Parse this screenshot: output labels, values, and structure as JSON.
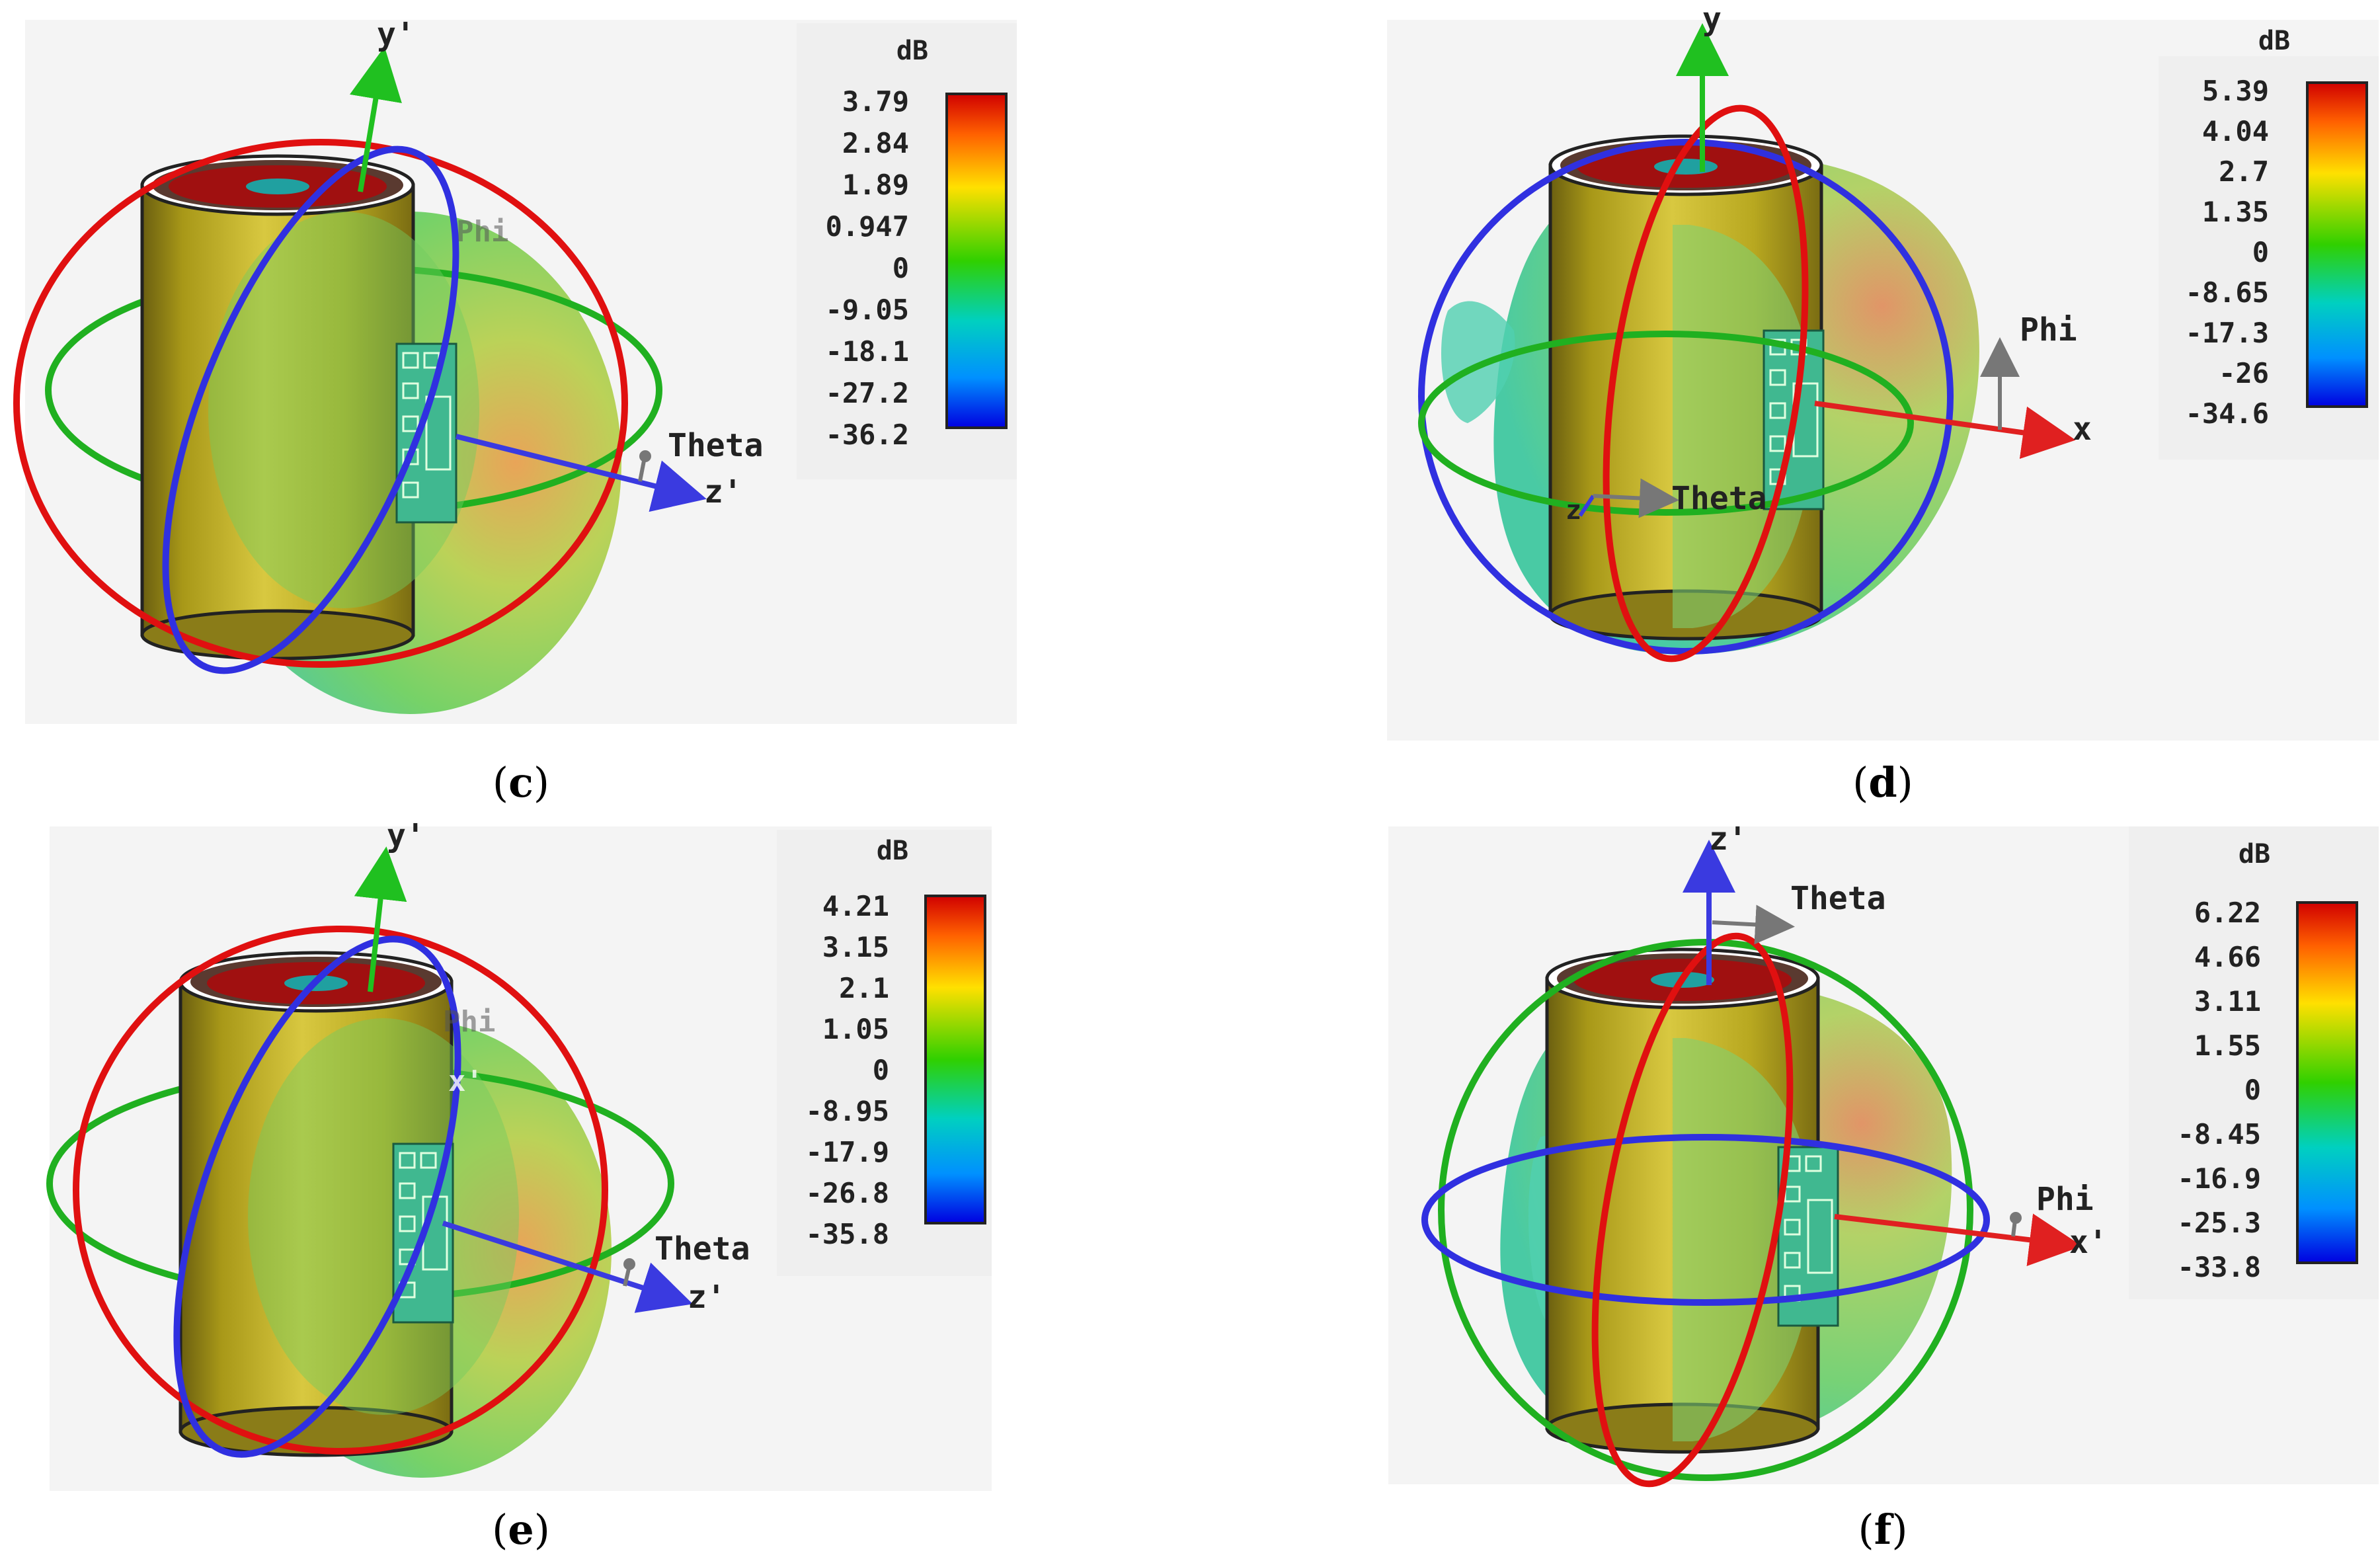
{
  "panels": [
    {
      "id": "c",
      "caption": {
        "open": "(",
        "letter": "c",
        "close": ")"
      },
      "axis_labels": {
        "up": "y'",
        "side": "z'",
        "theta": "Theta",
        "phi": "Phi"
      },
      "colorbar": {
        "unit": "dB",
        "ticks": [
          "3.79",
          "2.84",
          "1.89",
          "0.947",
          "0",
          "-9.05",
          "-18.1",
          "-27.2",
          "-36.2"
        ]
      }
    },
    {
      "id": "d",
      "caption": {
        "open": "(",
        "letter": "d",
        "close": ")"
      },
      "axis_labels": {
        "up": "y",
        "side": "x",
        "theta": "Theta",
        "phi": "Phi",
        "out": "z"
      },
      "colorbar": {
        "unit": "dB",
        "ticks": [
          "5.39",
          "4.04",
          "2.7",
          "1.35",
          "0",
          "-8.65",
          "-17.3",
          "-26",
          "-34.6"
        ]
      }
    },
    {
      "id": "e",
      "caption": {
        "open": "(",
        "letter": "e",
        "close": ")"
      },
      "axis_labels": {
        "up": "y'",
        "side": "z'",
        "theta": "Theta",
        "phi": "Phi",
        "back": "x'"
      },
      "colorbar": {
        "unit": "dB",
        "ticks": [
          "4.21",
          "3.15",
          "2.1",
          "1.05",
          "0",
          "-8.95",
          "-17.9",
          "-26.8",
          "-35.8"
        ]
      }
    },
    {
      "id": "f",
      "caption": {
        "open": "(",
        "letter": "f",
        "close": ")"
      },
      "axis_labels": {
        "up": "z'",
        "side": "x'",
        "theta": "Theta",
        "phi": "Phi"
      },
      "colorbar": {
        "unit": "dB",
        "ticks": [
          "6.22",
          "4.66",
          "3.11",
          "1.55",
          "0",
          "-8.45",
          "-16.9",
          "-25.3",
          "-33.8"
        ]
      }
    }
  ],
  "colors": {
    "ring_red": "#e01010",
    "ring_blue": "#3030e0",
    "ring_green": "#20b020",
    "axis_green": "#20c020",
    "axis_blue": "#3a3ae0",
    "axis_red": "#e02020",
    "axis_gray": "#777777",
    "cylinder_gold": "#b8a820",
    "pattern_green": "#7fd060"
  }
}
